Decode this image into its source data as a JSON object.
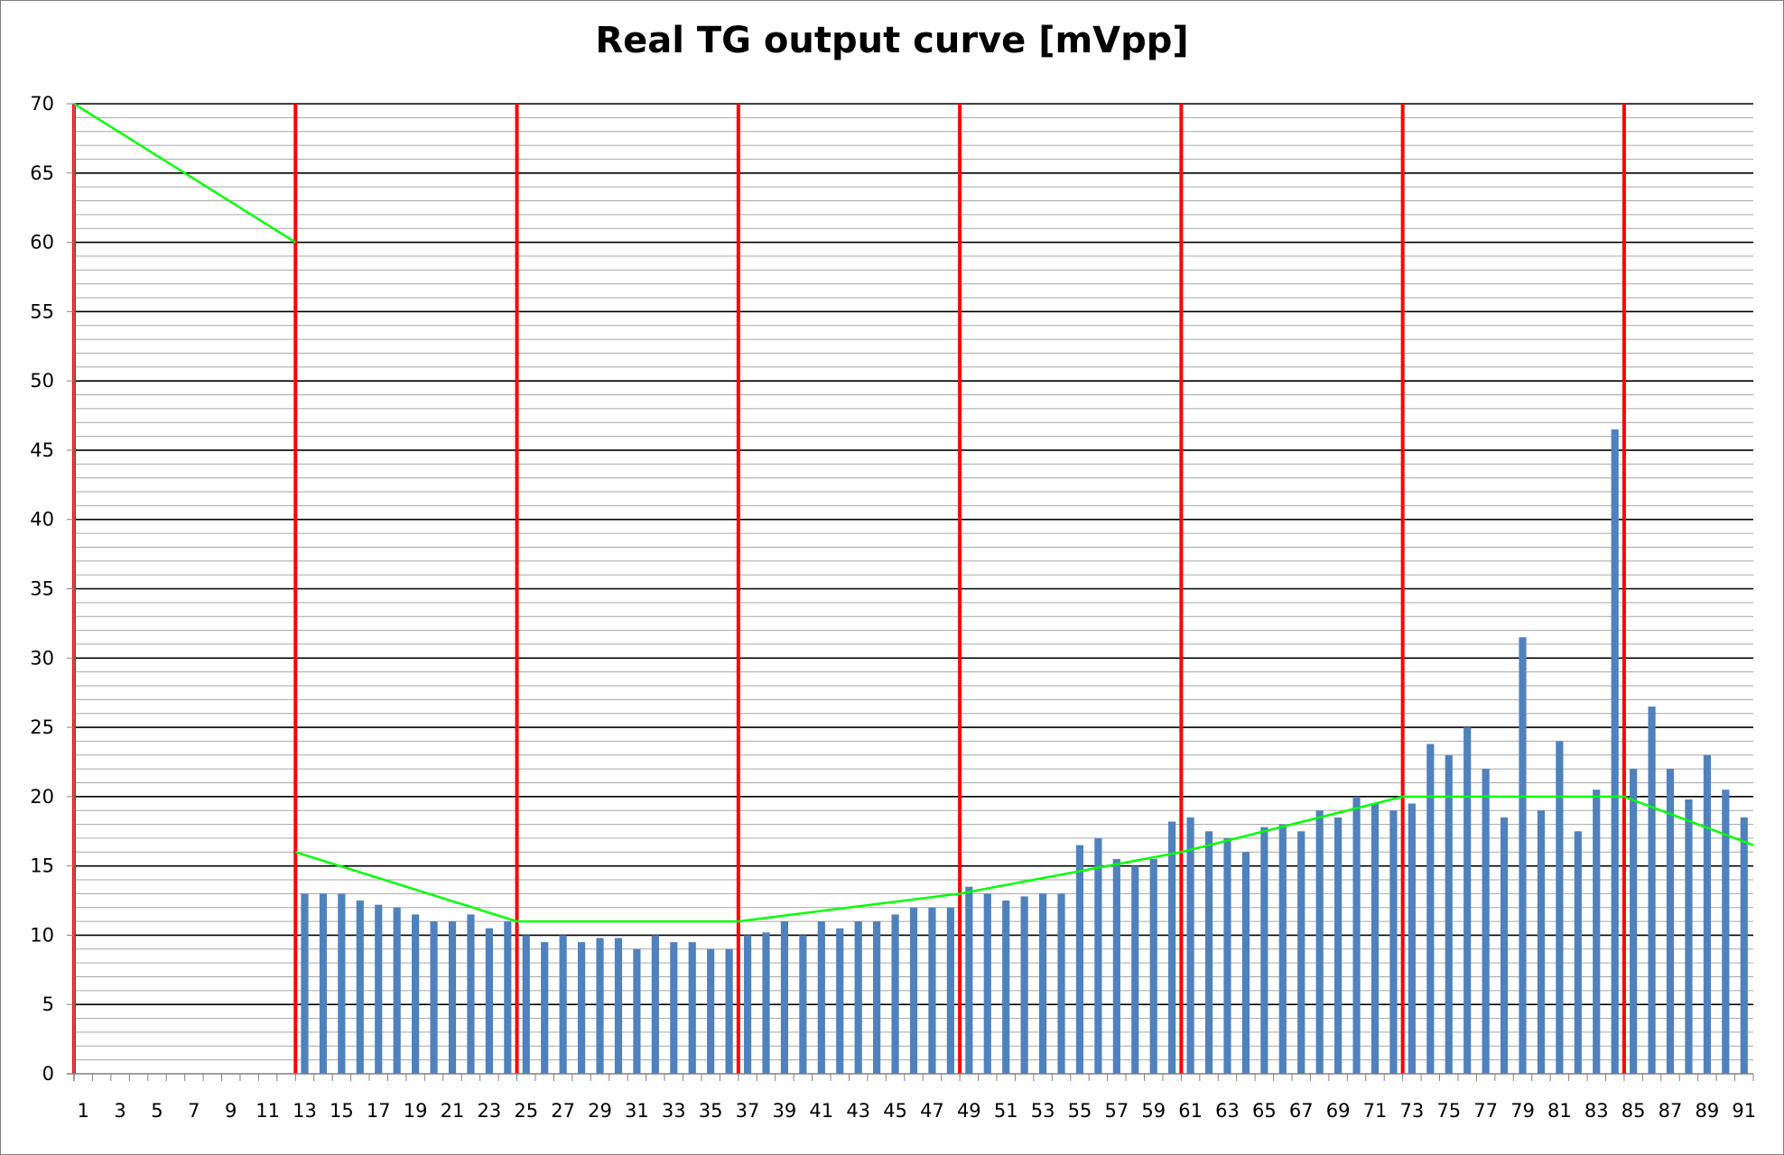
{
  "chart_data": {
    "type": "bar",
    "title": "Real TG output curve [mVpp]",
    "xlabel": "",
    "ylabel": "",
    "x": [
      1,
      2,
      3,
      4,
      5,
      6,
      7,
      8,
      9,
      10,
      11,
      12,
      13,
      14,
      15,
      16,
      17,
      18,
      19,
      20,
      21,
      22,
      23,
      24,
      25,
      26,
      27,
      28,
      29,
      30,
      31,
      32,
      33,
      34,
      35,
      36,
      37,
      38,
      39,
      40,
      41,
      42,
      43,
      44,
      45,
      46,
      47,
      48,
      49,
      50,
      51,
      52,
      53,
      54,
      55,
      56,
      57,
      58,
      59,
      60,
      61,
      62,
      63,
      64,
      65,
      66,
      67,
      68,
      69,
      70,
      71,
      72,
      73,
      74,
      75,
      76,
      77,
      78,
      79,
      80,
      81,
      82,
      83,
      84,
      85,
      86,
      87,
      88,
      89,
      90,
      91
    ],
    "x_tick_labels": [
      "1",
      "3",
      "5",
      "7",
      "9",
      "11",
      "13",
      "15",
      "17",
      "19",
      "21",
      "23",
      "25",
      "27",
      "29",
      "31",
      "33",
      "35",
      "37",
      "39",
      "41",
      "43",
      "45",
      "47",
      "49",
      "51",
      "53",
      "55",
      "57",
      "59",
      "61",
      "63",
      "65",
      "67",
      "69",
      "71",
      "73",
      "75",
      "77",
      "79",
      "81",
      "83",
      "85",
      "87",
      "89",
      "91"
    ],
    "ylim": [
      0,
      70
    ],
    "y_ticks": [
      0,
      5,
      10,
      15,
      20,
      25,
      30,
      35,
      40,
      45,
      50,
      55,
      60,
      65,
      70
    ],
    "y_minor_step": 1,
    "grid": true,
    "series": [
      {
        "kind": "bar",
        "color": "#4f81bd",
        "values": [
          0,
          0,
          0,
          0,
          0,
          0,
          0,
          0,
          0,
          0,
          0,
          0,
          13,
          13,
          13,
          12.5,
          12.2,
          12,
          11.5,
          11,
          11,
          11.5,
          10.5,
          11,
          10,
          9.5,
          10,
          9.5,
          9.8,
          9.8,
          9,
          10,
          9.5,
          9.5,
          9,
          9,
          10,
          10.2,
          11,
          10,
          11,
          10.5,
          11,
          11,
          11.5,
          12,
          12,
          12,
          13.5,
          13,
          12.5,
          12.8,
          13,
          13,
          16.5,
          17,
          15.5,
          15,
          15.5,
          18.2,
          18.5,
          17.5,
          17,
          16,
          17.8,
          18,
          17.5,
          19,
          18.5,
          20,
          19.5,
          19,
          19.5,
          23.8,
          23,
          25,
          22,
          18.5,
          31.5,
          19,
          24,
          17.5,
          20.5,
          46.5,
          22,
          26.5,
          22,
          19.8,
          23,
          20.5,
          18.5
        ]
      },
      {
        "kind": "line",
        "color": "#00ff00",
        "segments": [
          [
            [
              1,
              70
            ],
            [
              13,
              60
            ]
          ],
          [
            [
              13,
              16
            ],
            [
              25,
              11
            ],
            [
              37,
              11
            ],
            [
              49,
              13
            ],
            [
              61,
              16
            ],
            [
              73,
              20
            ],
            [
              85,
              20
            ],
            [
              92,
              16.5
            ]
          ]
        ]
      },
      {
        "kind": "vline",
        "color": "#ff0000",
        "x": [
          1,
          13,
          25,
          37,
          49,
          61,
          73,
          85
        ]
      }
    ]
  }
}
